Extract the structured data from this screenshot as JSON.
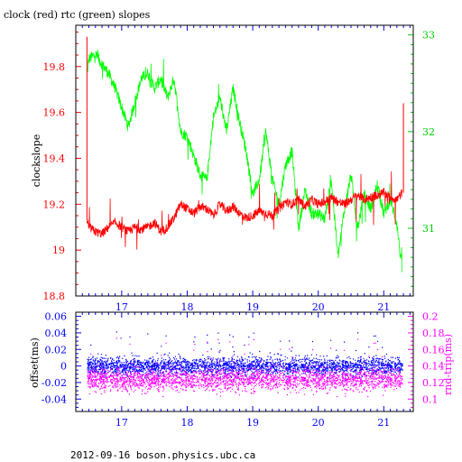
{
  "chart_data": [
    {
      "type": "line",
      "title": "clock (red) rtc (green) slopes",
      "xlabel": "",
      "ylabel": "clockslope",
      "y2label": "",
      "xlim": [
        16.3,
        21.45
      ],
      "ylim": [
        18.8,
        19.98
      ],
      "y2lim": [
        30.3,
        33.1
      ],
      "grid": false,
      "xticks": [
        17,
        18,
        19,
        20,
        21
      ],
      "yticks": [
        18.8,
        19,
        19.2,
        19.4,
        19.6,
        19.8
      ],
      "ytick_labels": [
        "18.8",
        "19",
        "19.2",
        "19.4",
        "19.6",
        "19.8"
      ],
      "y2ticks": [
        31,
        32,
        33
      ],
      "colors": {
        "left_axis": "#ff0000",
        "right_axis": "#00cc00",
        "x_axis": "#0000ff"
      },
      "series": [
        {
          "color": "#ff0000",
          "axis": "left",
          "x": [
            16.47,
            16.5,
            16.6,
            16.7,
            16.8,
            16.9,
            17.0,
            17.1,
            17.2,
            17.3,
            17.4,
            17.5,
            17.6,
            17.7,
            17.8,
            17.9,
            18.0,
            18.1,
            18.2,
            18.3,
            18.4,
            18.5,
            18.6,
            18.7,
            18.8,
            18.9,
            19.0,
            19.1,
            19.2,
            19.3,
            19.4,
            19.5,
            19.6,
            19.7,
            19.8,
            19.9,
            20.0,
            20.1,
            20.2,
            20.3,
            20.4,
            20.5,
            20.6,
            20.7,
            20.8,
            20.9,
            21.0,
            21.1,
            21.2,
            21.28
          ],
          "values": [
            19.13,
            19.1,
            19.08,
            19.07,
            19.1,
            19.12,
            19.1,
            19.08,
            19.1,
            19.09,
            19.1,
            19.12,
            19.08,
            19.1,
            19.14,
            19.2,
            19.18,
            19.16,
            19.19,
            19.18,
            19.15,
            19.2,
            19.17,
            19.19,
            19.16,
            19.14,
            19.15,
            19.17,
            19.16,
            19.15,
            19.18,
            19.21,
            19.2,
            19.22,
            19.19,
            19.22,
            19.2,
            19.21,
            19.23,
            19.21,
            19.2,
            19.22,
            19.24,
            19.22,
            19.23,
            19.24,
            19.25,
            19.23,
            19.22,
            19.25
          ]
        },
        {
          "color": "#00ff00",
          "axis": "right",
          "x": [
            16.47,
            16.5,
            16.6,
            16.7,
            16.8,
            16.9,
            17.0,
            17.1,
            17.2,
            17.3,
            17.4,
            17.5,
            17.6,
            17.7,
            17.8,
            17.9,
            18.0,
            18.1,
            18.2,
            18.3,
            18.4,
            18.5,
            18.6,
            18.7,
            18.8,
            18.9,
            19.0,
            19.1,
            19.2,
            19.3,
            19.4,
            19.5,
            19.6,
            19.7,
            19.8,
            19.9,
            20.0,
            20.1,
            20.2,
            20.3,
            20.4,
            20.5,
            20.6,
            20.7,
            20.8,
            20.9,
            21.0,
            21.1,
            21.2,
            21.28
          ],
          "values": [
            32.6,
            32.75,
            32.8,
            32.7,
            32.6,
            32.45,
            32.25,
            32.05,
            32.3,
            32.55,
            32.6,
            32.45,
            32.55,
            32.35,
            32.55,
            32.0,
            31.95,
            31.75,
            31.55,
            31.5,
            32.15,
            32.35,
            32.0,
            32.45,
            32.1,
            31.8,
            31.35,
            31.5,
            32.0,
            31.5,
            31.25,
            31.65,
            31.8,
            31.0,
            31.4,
            31.15,
            31.15,
            31.1,
            31.5,
            30.7,
            31.2,
            31.55,
            31.0,
            31.35,
            31.2,
            31.45,
            31.15,
            31.3,
            31.05,
            30.55
          ]
        }
      ]
    },
    {
      "type": "scatter",
      "title": "",
      "xlabel": "",
      "ylabel": "offset(ms)",
      "y2label": "rnd-trip(ms)",
      "xlim": [
        16.3,
        21.45
      ],
      "ylim": [
        -0.055,
        0.065
      ],
      "y2lim": [
        0.085,
        0.205
      ],
      "grid": false,
      "xticks": [
        17,
        18,
        19,
        20,
        21
      ],
      "yticks": [
        -0.04,
        -0.02,
        0,
        0.02,
        0.04,
        0.06
      ],
      "ytick_labels": [
        "-0.04",
        "-0.02",
        "0",
        "0.02",
        "0.04",
        "0.06"
      ],
      "y2ticks": [
        0.1,
        0.12,
        0.14,
        0.16,
        0.18,
        0.2
      ],
      "y2tick_labels": [
        "0.1",
        "0.12",
        "0.14",
        "0.16",
        "0.18",
        "0.2"
      ],
      "colors": {
        "left_axis": "#000000",
        "right_axis": "#ff00ff",
        "x_axis": "#0000ff"
      },
      "series": [
        {
          "color": "#0000ff",
          "axis": "left",
          "x_range": [
            16.47,
            21.28
          ],
          "center": 0.0,
          "spread": 0.01
        },
        {
          "color": "#ff00ff",
          "axis": "right",
          "x_range": [
            16.47,
            21.28
          ],
          "center": 0.124,
          "spread": 0.012
        }
      ]
    }
  ],
  "footer": "2012-09-16 boson.physics.ubc.ca"
}
